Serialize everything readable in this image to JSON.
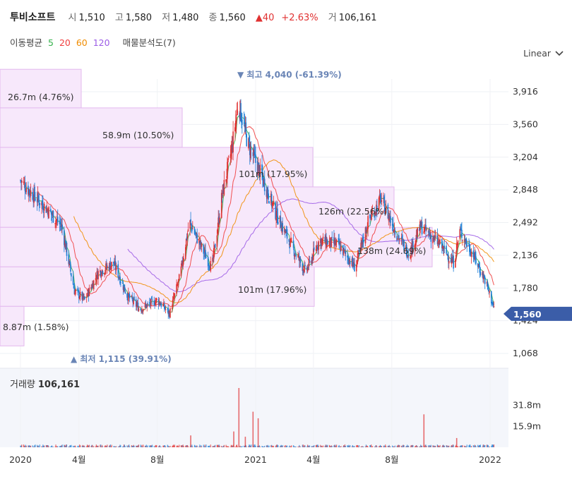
{
  "header": {
    "stock_name": "투비소프트",
    "open_label": "시",
    "open": "1,510",
    "high_label": "고",
    "high": "1,580",
    "low_label": "저",
    "low": "1,480",
    "close_label": "종",
    "close": "1,560",
    "change": "▲40",
    "change_pct": "+2.63%",
    "volume_label": "거",
    "volume": "106,161"
  },
  "ma_legend": {
    "label": "이동평균",
    "periods": [
      "5",
      "20",
      "60",
      "120"
    ],
    "volume_profile_label": "매물분석도(7)"
  },
  "scale_selector": {
    "label": "Linear"
  },
  "colors": {
    "up": "#e03131",
    "down": "#1c7ed6",
    "ma5": "#37b24d",
    "ma20": "#f03e3e",
    "ma60": "#f08c00",
    "ma120": "#9c5ce6",
    "profile_fill": "#f7e8fb",
    "profile_stroke": "#e3b8ee",
    "current_price_bg": "#3b5da8",
    "annotation": "#6a85b6"
  },
  "chart_data": {
    "type": "candlestick",
    "x_tick_labels": [
      "2020",
      "4월",
      "8월",
      "2021",
      "4월",
      "8월",
      "2022"
    ],
    "y_tick_labels": [
      "3,916",
      "3,560",
      "3,204",
      "2,848",
      "2,492",
      "2,136",
      "1,780",
      "1,424",
      "1,068"
    ],
    "y_range": [
      1000,
      4200
    ],
    "current_price": {
      "label": "1,560",
      "value": 1560
    },
    "high_annotation": {
      "label": "▼ 최고 4,040 (-61.39%)",
      "value": 4040
    },
    "low_annotation": {
      "label": "▲ 최저 1,115 (39.91%)",
      "value": 1115
    },
    "price_anchors": [
      {
        "date": "2020-01-01",
        "price": 2950
      },
      {
        "date": "2020-01-20",
        "price": 2800
      },
      {
        "date": "2020-02-10",
        "price": 2650
      },
      {
        "date": "2020-03-05",
        "price": 2450
      },
      {
        "date": "2020-03-25",
        "price": 1750
      },
      {
        "date": "2020-04-10",
        "price": 1650
      },
      {
        "date": "2020-05-01",
        "price": 1950
      },
      {
        "date": "2020-05-25",
        "price": 2050
      },
      {
        "date": "2020-06-15",
        "price": 1700
      },
      {
        "date": "2020-07-05",
        "price": 1550
      },
      {
        "date": "2020-08-01",
        "price": 1650
      },
      {
        "date": "2020-08-20",
        "price": 1500
      },
      {
        "date": "2020-09-05",
        "price": 1900
      },
      {
        "date": "2020-09-20",
        "price": 2500
      },
      {
        "date": "2020-10-10",
        "price": 2200
      },
      {
        "date": "2020-10-25",
        "price": 2000
      },
      {
        "date": "2020-11-10",
        "price": 2800
      },
      {
        "date": "2020-11-25",
        "price": 3300
      },
      {
        "date": "2020-12-05",
        "price": 3800
      },
      {
        "date": "2020-12-20",
        "price": 3350
      },
      {
        "date": "2021-01-10",
        "price": 3000
      },
      {
        "date": "2021-02-01",
        "price": 2600
      },
      {
        "date": "2021-02-25",
        "price": 2250
      },
      {
        "date": "2021-03-20",
        "price": 1950
      },
      {
        "date": "2021-04-10",
        "price": 2300
      },
      {
        "date": "2021-05-10",
        "price": 2250
      },
      {
        "date": "2021-06-05",
        "price": 2000
      },
      {
        "date": "2021-06-25",
        "price": 2500
      },
      {
        "date": "2021-07-15",
        "price": 2750
      },
      {
        "date": "2021-08-10",
        "price": 2350
      },
      {
        "date": "2021-08-28",
        "price": 2150
      },
      {
        "date": "2021-09-15",
        "price": 2450
      },
      {
        "date": "2021-10-15",
        "price": 2250
      },
      {
        "date": "2021-11-05",
        "price": 2050
      },
      {
        "date": "2021-11-15",
        "price": 2400
      },
      {
        "date": "2021-12-05",
        "price": 2150
      },
      {
        "date": "2021-12-25",
        "price": 1850
      },
      {
        "date": "2022-01-07",
        "price": 1560
      }
    ],
    "volume_profile": [
      {
        "label": "26.7m (4.76%)",
        "price_low": 3740,
        "price_high": 4160,
        "share": 4.76
      },
      {
        "label": "58.9m (10.50%)",
        "price_low": 3310,
        "price_high": 3740,
        "share": 10.5
      },
      {
        "label": "101m (17.95%)",
        "price_low": 2880,
        "price_high": 3310,
        "share": 17.95
      },
      {
        "label": "126m (22.56%)",
        "price_low": 2440,
        "price_high": 2880,
        "share": 22.56
      },
      {
        "label": "138m (24.69%)",
        "price_low": 2010,
        "price_high": 2440,
        "share": 24.69
      },
      {
        "label": "101m (17.96%)",
        "price_low": 1580,
        "price_high": 2010,
        "share": 17.96
      },
      {
        "label": "8.87m (1.58%)",
        "price_low": 1150,
        "price_high": 1580,
        "share": 1.58
      }
    ],
    "volume": {
      "title": "거래량",
      "latest": "106,161",
      "y_tick_labels": [
        "31.8m",
        "15.9m"
      ],
      "spikes_millions": [
        {
          "date": "2020-09-22",
          "value": 9
        },
        {
          "date": "2020-11-28",
          "value": 12
        },
        {
          "date": "2020-12-06",
          "value": 45
        },
        {
          "date": "2020-12-16",
          "value": 8
        },
        {
          "date": "2020-12-28",
          "value": 27
        },
        {
          "date": "2021-01-05",
          "value": 22
        },
        {
          "date": "2021-09-20",
          "value": 25
        },
        {
          "date": "2021-11-10",
          "value": 7
        }
      ]
    }
  }
}
